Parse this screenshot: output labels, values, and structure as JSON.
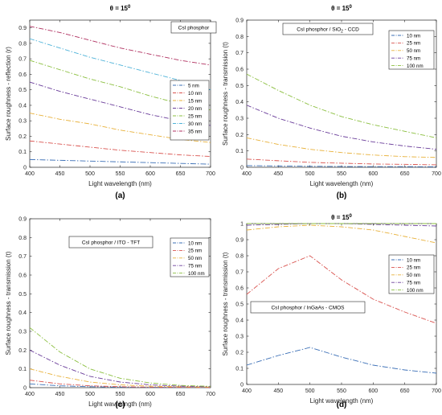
{
  "chart_data": [
    {
      "type": "line",
      "panel_label": "(a)",
      "title": "θ = 15",
      "title_superscript": "0",
      "xlabel": "Light wavelength (nm)",
      "ylabel": "Surface roughness - reflection (r)",
      "xlim": [
        400,
        700
      ],
      "ylim": [
        0,
        0.95
      ],
      "xticks": [
        "400",
        "450",
        "500",
        "550",
        "600",
        "650",
        "700"
      ],
      "yticks": [
        "0",
        "0.1",
        "0.2",
        "0.3",
        "0.4",
        "0.5",
        "0.6",
        "0.7",
        "0.8",
        "0.9"
      ],
      "annotation": "CsI phosphor",
      "annotation_sub": "",
      "annotation_tail": "",
      "legend_position": "right",
      "x": [
        400,
        450,
        500,
        550,
        600,
        650,
        700
      ],
      "series": [
        {
          "name": "5 nm",
          "color": "#3b6fb6",
          "values": [
            0.05,
            0.045,
            0.04,
            0.035,
            0.03,
            0.025,
            0.02
          ]
        },
        {
          "name": "10 nm",
          "color": "#d9534f",
          "values": [
            0.17,
            0.15,
            0.13,
            0.11,
            0.095,
            0.08,
            0.07
          ]
        },
        {
          "name": "15 nm",
          "color": "#e8b13a",
          "values": [
            0.35,
            0.31,
            0.28,
            0.24,
            0.21,
            0.18,
            0.16
          ]
        },
        {
          "name": "20 nm",
          "color": "#6a3d9a",
          "values": [
            0.55,
            0.49,
            0.44,
            0.39,
            0.34,
            0.3,
            0.27
          ]
        },
        {
          "name": "25 nm",
          "color": "#8bbf3f",
          "values": [
            0.69,
            0.63,
            0.57,
            0.52,
            0.46,
            0.41,
            0.37
          ]
        },
        {
          "name": "30 nm",
          "color": "#4fb3d9",
          "values": [
            0.83,
            0.77,
            0.71,
            0.66,
            0.61,
            0.56,
            0.5
          ]
        },
        {
          "name": "35 nm",
          "color": "#b03060",
          "values": [
            0.91,
            0.87,
            0.82,
            0.77,
            0.73,
            0.69,
            0.66
          ]
        }
      ]
    },
    {
      "type": "line",
      "panel_label": "(b)",
      "title": "θ = 15",
      "title_superscript": "0",
      "xlabel": "Light wavelength (nm)",
      "ylabel": "Surface roughness - transmission (t)",
      "xlim": [
        400,
        700
      ],
      "ylim": [
        0,
        0.9
      ],
      "xticks": [
        "400",
        "450",
        "500",
        "550",
        "600",
        "650",
        "700"
      ],
      "yticks": [
        "0",
        "0.1",
        "0.2",
        "0.3",
        "0.4",
        "0.5",
        "0.6",
        "0.7",
        "0.8",
        "0.9"
      ],
      "annotation": "CsI phosphor / SiO",
      "annotation_sub": "2",
      "annotation_tail": " - CCD",
      "legend_position": "top-right",
      "x": [
        400,
        450,
        500,
        550,
        600,
        650,
        700
      ],
      "series": [
        {
          "name": "10 nm",
          "color": "#3b6fb6",
          "values": [
            0.01,
            0.008,
            0.006,
            0.005,
            0.004,
            0.004,
            0.003
          ]
        },
        {
          "name": "25 nm",
          "color": "#d9534f",
          "values": [
            0.05,
            0.04,
            0.03,
            0.025,
            0.02,
            0.018,
            0.015
          ]
        },
        {
          "name": "50 nm",
          "color": "#e8b13a",
          "values": [
            0.18,
            0.14,
            0.11,
            0.09,
            0.075,
            0.065,
            0.06
          ]
        },
        {
          "name": "75 nm",
          "color": "#6a3d9a",
          "values": [
            0.38,
            0.3,
            0.24,
            0.19,
            0.155,
            0.13,
            0.11
          ]
        },
        {
          "name": "100 nm",
          "color": "#8bbf3f",
          "values": [
            0.57,
            0.47,
            0.38,
            0.31,
            0.26,
            0.22,
            0.18
          ]
        }
      ]
    },
    {
      "type": "line",
      "panel_label": "(c)",
      "title": "",
      "title_superscript": "",
      "xlabel": "Light wavelength (nm)",
      "ylabel": "Surface roughness - transmission (t)",
      "xlim": [
        400,
        700
      ],
      "ylim": [
        0,
        0.9
      ],
      "xticks": [
        "400",
        "450",
        "500",
        "550",
        "600",
        "650",
        "700"
      ],
      "yticks": [
        "0",
        "0.1",
        "0.2",
        "0.3",
        "0.4",
        "0.5",
        "0.6",
        "0.7",
        "0.8",
        "0.9"
      ],
      "annotation": "CsI phosphor / ITO - TFT",
      "annotation_sub": "",
      "annotation_tail": "",
      "legend_position": "top-right",
      "x": [
        400,
        450,
        500,
        550,
        600,
        650,
        700
      ],
      "series": [
        {
          "name": "10 nm",
          "color": "#3b6fb6",
          "values": [
            0.02,
            0.01,
            0.005,
            0.003,
            0.002,
            0.001,
            0.001
          ]
        },
        {
          "name": "25 nm",
          "color": "#d9534f",
          "values": [
            0.04,
            0.02,
            0.01,
            0.005,
            0.003,
            0.002,
            0.001
          ]
        },
        {
          "name": "50 nm",
          "color": "#e8b13a",
          "values": [
            0.1,
            0.06,
            0.03,
            0.015,
            0.008,
            0.005,
            0.003
          ]
        },
        {
          "name": "75 nm",
          "color": "#6a3d9a",
          "values": [
            0.2,
            0.12,
            0.06,
            0.03,
            0.015,
            0.008,
            0.005
          ]
        },
        {
          "name": "100 nm",
          "color": "#8bbf3f",
          "values": [
            0.32,
            0.19,
            0.1,
            0.05,
            0.025,
            0.012,
            0.007
          ]
        }
      ]
    },
    {
      "type": "line",
      "panel_label": "(d)",
      "title": "θ = 15",
      "title_superscript": "0",
      "xlabel": "Light wavelength (nm)",
      "ylabel": "Surface roughness - transmission (t)",
      "xlim": [
        400,
        700
      ],
      "ylim": [
        0,
        1
      ],
      "xticks": [
        "400",
        "450",
        "500",
        "550",
        "600",
        "650",
        "700"
      ],
      "yticks": [
        "0",
        "0.1",
        "0.2",
        "0.3",
        "0.4",
        "0.5",
        "0.6",
        "0.7",
        "0.8",
        "0.9",
        "1"
      ],
      "annotation": "CsI phosphor / InGaAs - CMOS",
      "annotation_sub": "",
      "annotation_tail": "",
      "legend_position": "top-right",
      "x": [
        400,
        450,
        500,
        550,
        600,
        650,
        700
      ],
      "series": [
        {
          "name": "10 nm",
          "color": "#3b6fb6",
          "values": [
            0.12,
            0.18,
            0.23,
            0.17,
            0.12,
            0.09,
            0.07
          ]
        },
        {
          "name": "25 nm",
          "color": "#d9534f",
          "values": [
            0.56,
            0.72,
            0.8,
            0.65,
            0.53,
            0.45,
            0.38
          ]
        },
        {
          "name": "50 nm",
          "color": "#e8b13a",
          "values": [
            0.96,
            0.98,
            0.99,
            0.98,
            0.96,
            0.92,
            0.88
          ]
        },
        {
          "name": "75 nm",
          "color": "#6a3d9a",
          "values": [
            0.99,
            0.995,
            1.0,
            1.0,
            0.995,
            0.99,
            0.985
          ]
        },
        {
          "name": "100 nm",
          "color": "#8bbf3f",
          "values": [
            1.0,
            1.0,
            1.0,
            1.0,
            1.0,
            1.0,
            1.0
          ]
        }
      ]
    }
  ]
}
